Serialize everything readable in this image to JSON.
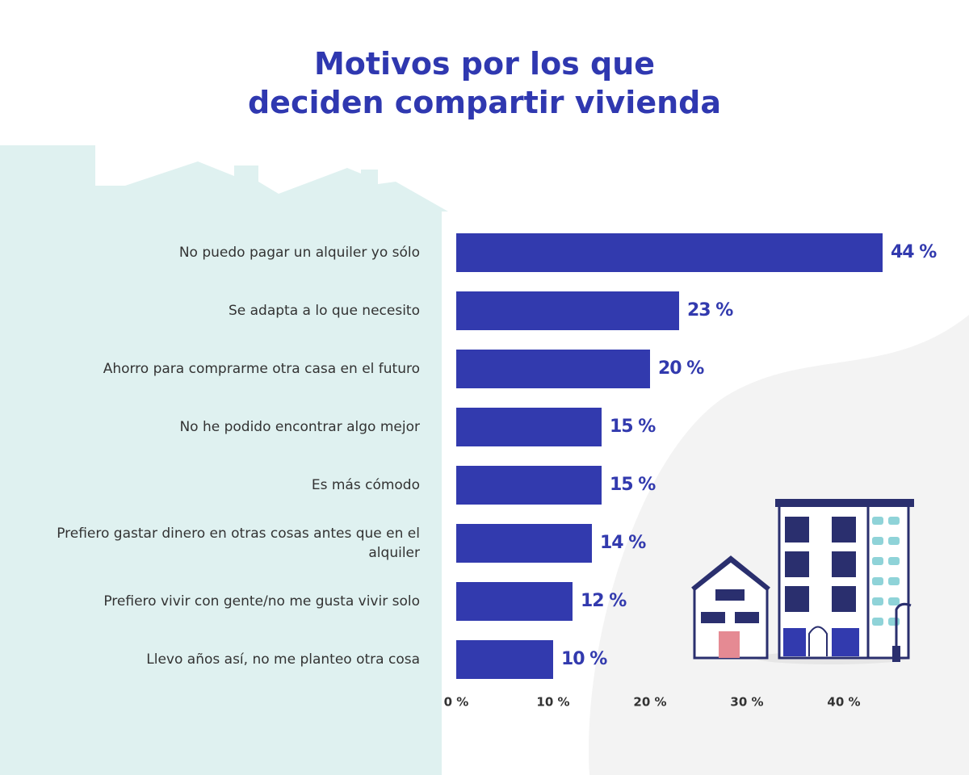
{
  "chart_data": {
    "type": "barh",
    "title": "Motivos por los que deciden compartir vivienda",
    "categories": [
      "No puedo pagar un alquiler yo sólo",
      "Se adapta a lo que necesito",
      "Ahorro para comprarme otra casa en el futuro",
      "No he podido encontrar algo mejor",
      "Es más cómodo",
      "Prefiero gastar dinero en otras cosas antes que en el alquiler",
      "Prefiero vivir con gente/no me gusta vivir solo",
      "Llevo años así, no me planteo otra cosa"
    ],
    "values": [
      44,
      23,
      20,
      15,
      15,
      14,
      12,
      10
    ],
    "value_labels": [
      "44 %",
      "23 %",
      "20 %",
      "15 %",
      "15 %",
      "14 %",
      "12 %",
      "10 %"
    ],
    "color": "#323aae",
    "xlim": [
      0,
      50
    ],
    "xticks": [
      {
        "value": 0,
        "label": "0 %"
      },
      {
        "value": 10,
        "label": "10 %"
      },
      {
        "value": 20,
        "label": "20 %"
      },
      {
        "value": 30,
        "label": "30 %"
      },
      {
        "value": 40,
        "label": "40 %"
      }
    ],
    "grid": false
  }
}
